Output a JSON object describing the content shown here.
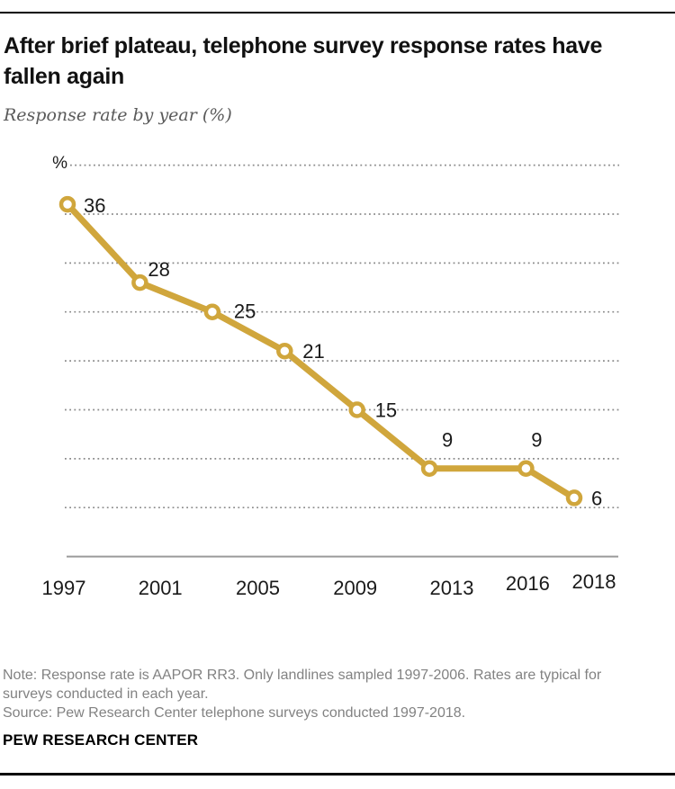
{
  "header": {
    "title": "After brief plateau, telephone survey response rates have fallen again",
    "subtitle": "Response rate by year (%)"
  },
  "chart_data": {
    "type": "line",
    "title": "After brief plateau, telephone survey response rates have fallen again",
    "subtitle": "Response rate by year (%)",
    "unit_label": "%",
    "x": [
      1997,
      2000,
      2003,
      2006,
      2009,
      2012,
      2016,
      2018
    ],
    "series": [
      {
        "name": "Response rate (%)",
        "values": [
          36,
          28,
          25,
          21,
          15,
          9,
          9,
          6
        ]
      }
    ],
    "x_ticks": [
      {
        "label": "1997",
        "year": 1997
      },
      {
        "label": "2001",
        "year": 2001
      },
      {
        "label": "2005",
        "year": 2005
      },
      {
        "label": "2009",
        "year": 2009
      },
      {
        "label": "2013",
        "year": 2013
      },
      {
        "label": "2016",
        "year": 2016
      },
      {
        "label": "2018",
        "year": 2018
      }
    ],
    "gridline_values": [
      40,
      35,
      30,
      25,
      20,
      15,
      10,
      5
    ],
    "xlim": [
      1997,
      2018
    ],
    "ylim": [
      0,
      40
    ],
    "grid": "dotted horizontal",
    "legend": "none",
    "line_color": "#d0a63c",
    "marker": "open-circle"
  },
  "footer": {
    "note": "Note: Response rate is AAPOR RR3. Only landlines sampled 1997-2006. Rates are typical for surveys conducted in each year.",
    "source": "Source: Pew Research Center telephone surveys conducted 1997-2018.",
    "brand": "PEW RESEARCH CENTER"
  }
}
